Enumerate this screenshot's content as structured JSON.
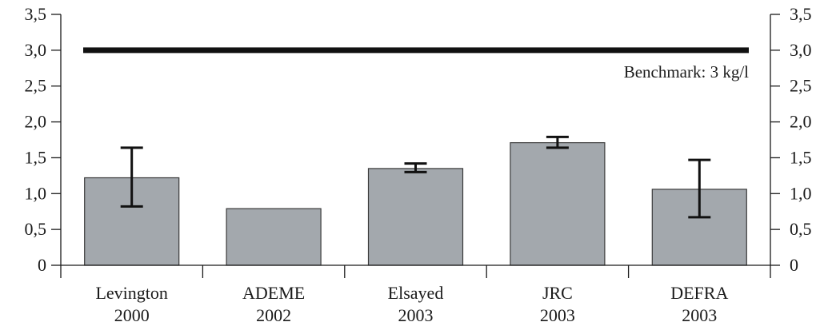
{
  "chart_data": {
    "type": "bar",
    "categories": [
      {
        "name": "Levington",
        "year": "2000"
      },
      {
        "name": "ADEME",
        "year": "2002"
      },
      {
        "name": "Elsayed",
        "year": "2003"
      },
      {
        "name": "JRC",
        "year": "2003"
      },
      {
        "name": "DEFRA",
        "year": "2003"
      }
    ],
    "values": [
      1.22,
      0.79,
      1.35,
      1.71,
      1.06
    ],
    "error_low": [
      0.82,
      null,
      1.3,
      1.64,
      0.67
    ],
    "error_high": [
      1.64,
      null,
      1.42,
      1.79,
      1.47
    ],
    "ylim": [
      0,
      3.5
    ],
    "yticks": [
      "0",
      "0,5",
      "1,0",
      "1,5",
      "2,0",
      "2,5",
      "3,0",
      "3,5"
    ],
    "y_axis_both_sides": true,
    "grid": false,
    "benchmark": {
      "value": 3.0,
      "label": "Benchmark: 3 kg/l"
    },
    "colors": {
      "bar": "#a3a8ad",
      "bar_edge": "#3a3a3a",
      "axis": "#1a1a1a",
      "benchmark": "#111111"
    }
  }
}
